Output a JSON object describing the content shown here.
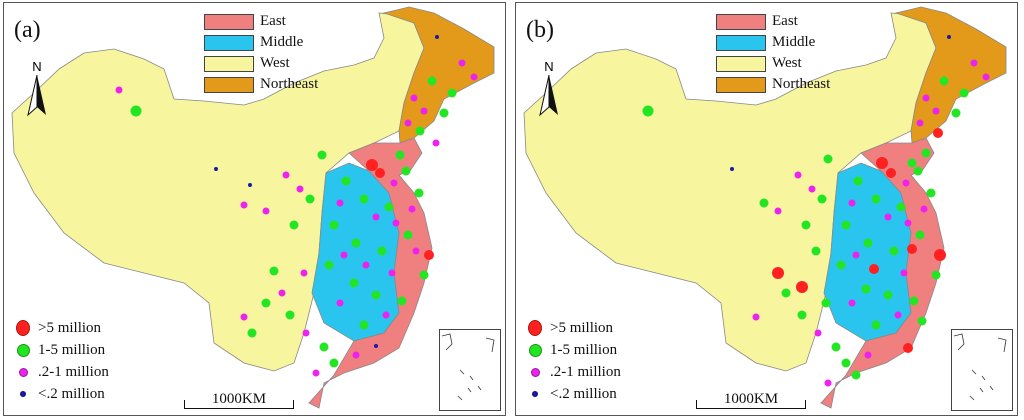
{
  "panels": [
    {
      "label": "(a)"
    },
    {
      "label": "(b)"
    }
  ],
  "legend": {
    "regions": [
      {
        "name": "East",
        "color": "#f08080"
      },
      {
        "name": "Middle",
        "color": "#29c5ee"
      },
      {
        "name": "West",
        "color": "#f7f59e"
      },
      {
        "name": "Northeast",
        "color": "#e39a1b"
      }
    ],
    "sizes": [
      {
        "label": ">5 million",
        "color": "#ff2020"
      },
      {
        "label": "1-5 million",
        "color": "#22e622"
      },
      {
        "label": ".2-1 million",
        "color": "#ee22ee"
      },
      {
        "label": "<.2 million",
        "color": "#1a1aaa"
      }
    ]
  },
  "north_label": "N",
  "scale_label": "1000KM"
}
